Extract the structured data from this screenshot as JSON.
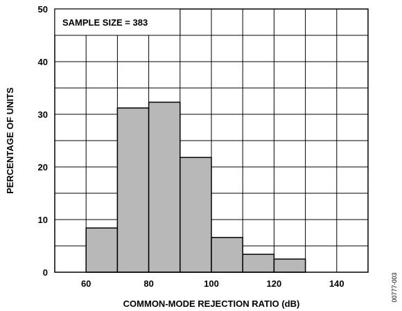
{
  "chart_data": {
    "type": "bar",
    "title": "",
    "annotation": "SAMPLE SIZE = 383",
    "xlabel": "COMMON-MODE REJECTION RATIO (dB)",
    "ylabel": "PERCENTAGE OF UNITS",
    "xlim": [
      50,
      150
    ],
    "ylim": [
      0,
      50
    ],
    "x_ticks": [
      60,
      80,
      100,
      120,
      140
    ],
    "x_tick_labels": [
      "60",
      "80",
      "100",
      "120",
      "140"
    ],
    "y_ticks": [
      0,
      10,
      20,
      30,
      40,
      50
    ],
    "y_tick_labels": [
      "0",
      "10",
      "20",
      "30",
      "40",
      "50"
    ],
    "x_gridlines": [
      60,
      70,
      80,
      90,
      100,
      110,
      120,
      130,
      140
    ],
    "y_gridlines": [
      5,
      10,
      15,
      20,
      25,
      30,
      35,
      40,
      45
    ],
    "grid": true,
    "bar_color": "#b8b8b8",
    "bins": [
      {
        "start": 60,
        "end": 70,
        "value": 8.4
      },
      {
        "start": 70,
        "end": 80,
        "value": 31.2
      },
      {
        "start": 80,
        "end": 90,
        "value": 32.3
      },
      {
        "start": 90,
        "end": 100,
        "value": 21.8
      },
      {
        "start": 100,
        "end": 110,
        "value": 6.6
      },
      {
        "start": 110,
        "end": 120,
        "value": 3.4
      },
      {
        "start": 120,
        "end": 130,
        "value": 2.5
      }
    ]
  },
  "figure_id": "00777-003"
}
